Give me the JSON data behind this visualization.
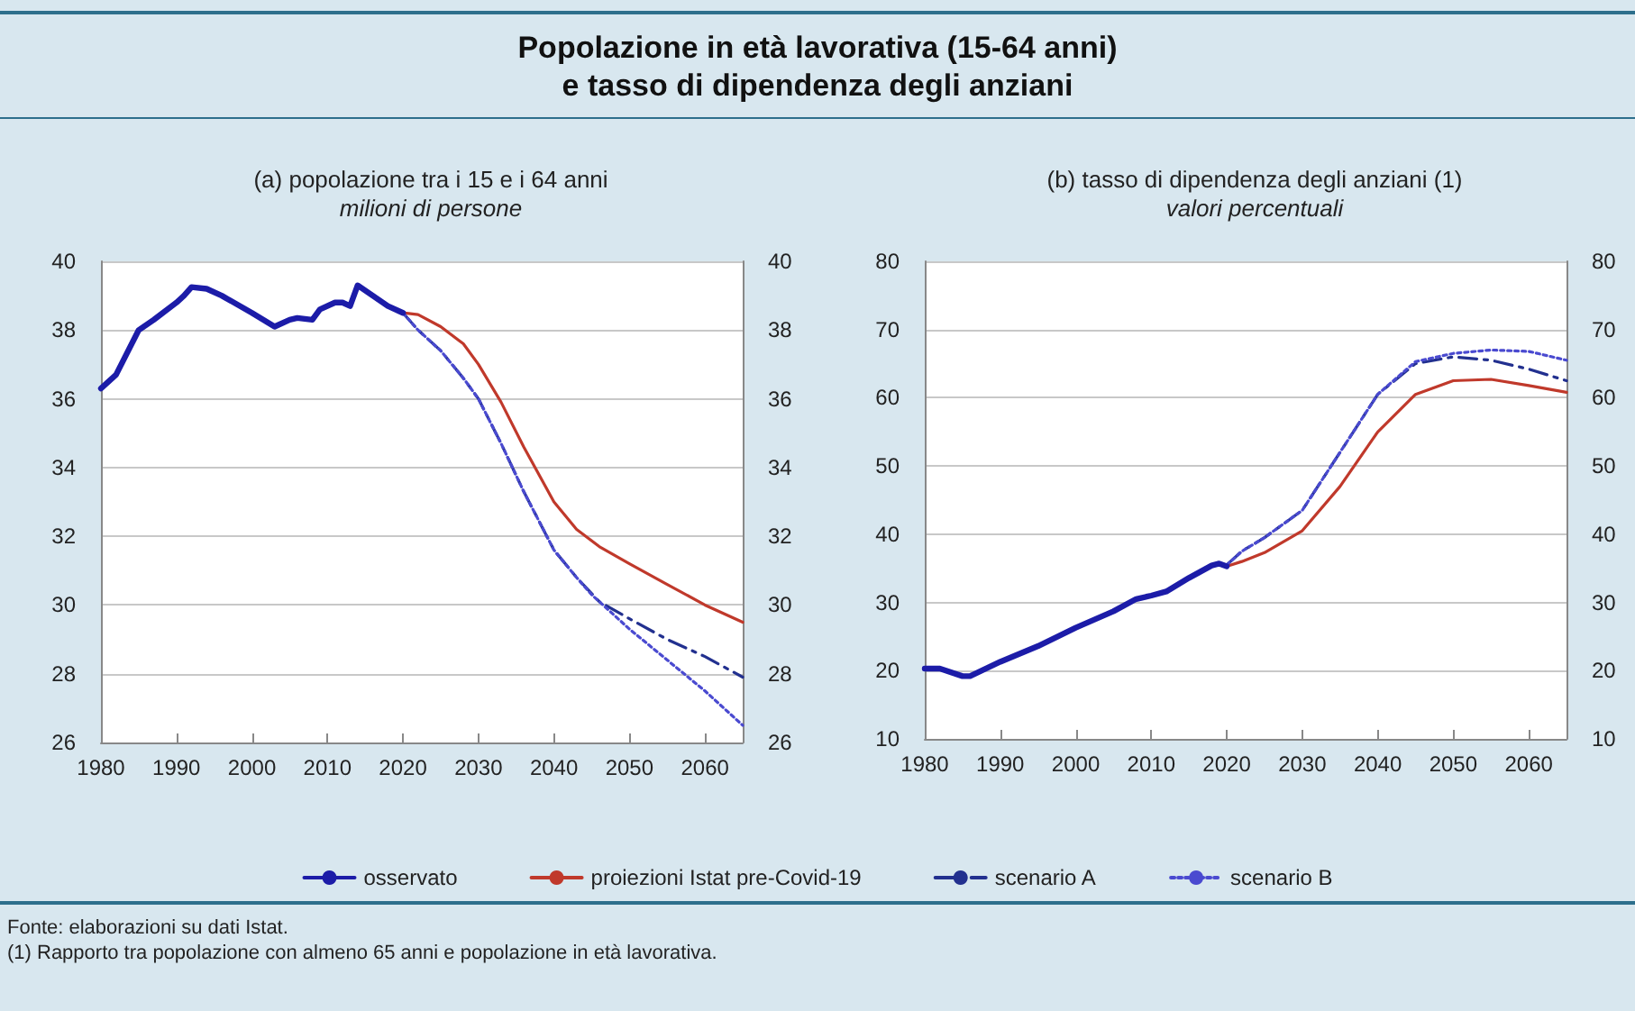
{
  "chart_data": [
    {
      "type": "line",
      "title": "(a) popolazione tra i 15 e i 64 anni",
      "subtitle": "milioni di persone",
      "annotations": [
        "Popolazione in età lavorativa (15-64 anni)\ne tasso di dipendenza degli anziani",
        "Fonte: elaborazioni su dati Istat."
      ],
      "xlim": [
        1980,
        2065
      ],
      "xticks": [
        1980,
        1990,
        2000,
        2010,
        2020,
        2030,
        2040,
        2050,
        2060
      ],
      "ylim": [
        26,
        40
      ],
      "yticks": [
        26,
        28,
        30,
        32,
        34,
        36,
        38,
        40
      ],
      "y2lim": [
        26,
        40
      ],
      "y2ticks": [
        26,
        28,
        30,
        32,
        34,
        36,
        38,
        40
      ],
      "grid": "y",
      "legend": "bottom",
      "marker": "none",
      "series": [
        {
          "name": "osservato",
          "color": "#1c1ca8",
          "line_style": "solid",
          "x": [
            1980,
            1982,
            1985,
            1987,
            1990,
            1991,
            1992,
            1994,
            1996,
            2000,
            2003,
            2005,
            2006,
            2008,
            2009,
            2011,
            2012,
            2013,
            2014,
            2016,
            2018,
            2020
          ],
          "values": [
            36.3,
            36.7,
            38.0,
            38.3,
            38.8,
            39.0,
            39.25,
            39.2,
            39.0,
            38.5,
            38.1,
            38.3,
            38.35,
            38.3,
            38.6,
            38.8,
            38.8,
            38.7,
            39.3,
            39.0,
            38.7,
            38.5
          ]
        },
        {
          "name": "proiezioni Istat pre-Covid-19",
          "color": "#c0392b",
          "line_style": "solid",
          "x": [
            2020,
            2022,
            2025,
            2028,
            2030,
            2033,
            2036,
            2040,
            2043,
            2046,
            2050,
            2055,
            2060,
            2065
          ],
          "values": [
            38.5,
            38.45,
            38.1,
            37.6,
            37.0,
            35.9,
            34.6,
            33.0,
            32.2,
            31.7,
            31.2,
            30.6,
            30.0,
            29.5
          ]
        },
        {
          "name": "scenario A",
          "color": "#22308f",
          "line_style": "dashed",
          "x": [
            2020,
            2022,
            2025,
            2028,
            2030,
            2033,
            2036,
            2040,
            2043,
            2046,
            2050,
            2055,
            2060,
            2065
          ],
          "values": [
            38.5,
            38.0,
            37.4,
            36.6,
            36.0,
            34.7,
            33.3,
            31.6,
            30.8,
            30.1,
            29.6,
            29.0,
            28.5,
            27.9
          ]
        },
        {
          "name": "scenario B",
          "color": "#4a4ad0",
          "line_style": "dotted",
          "x": [
            2020,
            2022,
            2025,
            2028,
            2030,
            2033,
            2036,
            2040,
            2043,
            2045,
            2050,
            2055,
            2060,
            2065
          ],
          "values": [
            38.5,
            38.0,
            37.4,
            36.6,
            36.0,
            34.7,
            33.3,
            31.6,
            30.8,
            30.3,
            29.3,
            28.4,
            27.5,
            26.5
          ]
        }
      ]
    },
    {
      "type": "line",
      "title": "(b) tasso di dipendenza degli anziani (1)",
      "subtitle": "valori percentuali",
      "annotations": [
        "(1) Rapporto tra popolazione con almeno 65 anni e popolazione in età lavorativa."
      ],
      "xlim": [
        1980,
        2065
      ],
      "xticks": [
        1980,
        1990,
        2000,
        2010,
        2020,
        2030,
        2040,
        2050,
        2060
      ],
      "ylim": [
        10,
        80
      ],
      "yticks": [
        10,
        20,
        30,
        40,
        50,
        60,
        70,
        80
      ],
      "y2lim": [
        10,
        80
      ],
      "y2ticks": [
        10,
        20,
        30,
        40,
        50,
        60,
        70,
        80
      ],
      "grid": "y",
      "marker": "none",
      "series": [
        {
          "color": "#1c1ca8",
          "line_style": "solid",
          "x": [
            1980,
            1982,
            1985,
            1986,
            1990,
            1995,
            2000,
            2005,
            2008,
            2010,
            2012,
            2015,
            2018,
            2019,
            2020
          ],
          "values": [
            20.3,
            20.3,
            19.2,
            19.2,
            21.3,
            23.6,
            26.3,
            28.7,
            30.5,
            31.0,
            31.6,
            33.6,
            35.4,
            35.7,
            35.3
          ]
        },
        {
          "color": "#c0392b",
          "line_style": "solid",
          "x": [
            2020,
            2022,
            2025,
            2030,
            2035,
            2040,
            2045,
            2050,
            2055,
            2060,
            2065
          ],
          "values": [
            35.3,
            36.0,
            37.3,
            40.5,
            47.0,
            55.0,
            60.5,
            62.5,
            62.7,
            61.8,
            60.8
          ]
        },
        {
          "color": "#22308f",
          "line_style": "dashed",
          "x": [
            2020,
            2022,
            2025,
            2030,
            2035,
            2040,
            2045,
            2050,
            2055,
            2060,
            2065
          ],
          "values": [
            35.5,
            37.5,
            39.5,
            43.5,
            52.0,
            60.5,
            65.0,
            66.0,
            65.5,
            64.2,
            62.5
          ]
        },
        {
          "color": "#4a4ad0",
          "line_style": "dotted",
          "x": [
            2020,
            2022,
            2025,
            2030,
            2035,
            2040,
            2045,
            2050,
            2055,
            2060,
            2065
          ],
          "values": [
            35.5,
            37.5,
            39.5,
            43.5,
            52.0,
            60.5,
            65.3,
            66.5,
            67.0,
            66.8,
            65.5
          ]
        }
      ]
    }
  ]
}
